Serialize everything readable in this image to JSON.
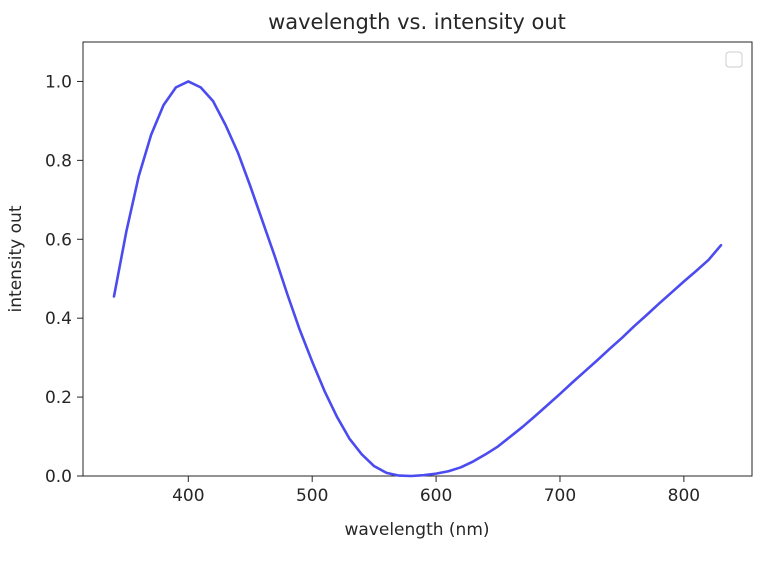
{
  "chart_data": {
    "type": "line",
    "title": "wavelength vs. intensity out",
    "xlabel": "wavelength (nm)",
    "ylabel": "intensity out",
    "xlim": [
      315,
      855
    ],
    "ylim": [
      0,
      1.1
    ],
    "xticks": [
      400,
      500,
      600,
      700,
      800
    ],
    "yticks": [
      0.0,
      0.2,
      0.4,
      0.6,
      0.8,
      1.0
    ],
    "xtick_labels": [
      "400",
      "500",
      "600",
      "700",
      "800"
    ],
    "ytick_labels": [
      "0.0",
      "0.2",
      "0.4",
      "0.6",
      "0.8",
      "1.0"
    ],
    "grid": false,
    "legend": {
      "placement": "top-right",
      "entries": []
    },
    "series": [
      {
        "color": "#4b4bef",
        "x": [
          340,
          350,
          360,
          370,
          380,
          390,
          400,
          410,
          420,
          430,
          440,
          450,
          460,
          470,
          480,
          490,
          500,
          510,
          520,
          530,
          540,
          550,
          560,
          570,
          580,
          590,
          600,
          610,
          620,
          630,
          640,
          650,
          660,
          670,
          680,
          690,
          700,
          710,
          720,
          730,
          740,
          750,
          760,
          770,
          780,
          790,
          800,
          810,
          820,
          830
        ],
        "y": [
          0.455,
          0.62,
          0.76,
          0.865,
          0.94,
          0.985,
          1.0,
          0.985,
          0.95,
          0.89,
          0.82,
          0.735,
          0.645,
          0.555,
          0.46,
          0.37,
          0.29,
          0.215,
          0.15,
          0.095,
          0.055,
          0.025,
          0.008,
          0.001,
          0.0,
          0.002,
          0.006,
          0.012,
          0.022,
          0.037,
          0.055,
          0.075,
          0.1,
          0.125,
          0.152,
          0.18,
          0.208,
          0.237,
          0.265,
          0.293,
          0.322,
          0.35,
          0.38,
          0.408,
          0.437,
          0.465,
          0.493,
          0.52,
          0.548,
          0.585
        ]
      }
    ]
  }
}
